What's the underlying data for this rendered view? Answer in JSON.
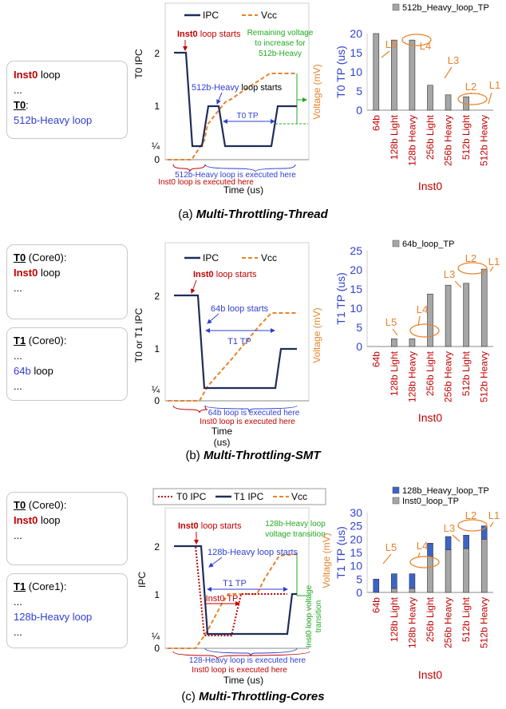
{
  "colors": {
    "ipc": "#1f2d5a",
    "vcc": "#e8832a",
    "red": "#c00000",
    "blue": "#2f3fd0",
    "green": "#22aa22",
    "bar_gray": "#a6a6a6",
    "bar_blue": "#3a64c8"
  },
  "panel_a": {
    "caption_prefix": "(a) ",
    "caption_title": "Multi-Throttling-Thread",
    "code": {
      "l1": "Inst0",
      "l1b": " loop",
      "l2": "...",
      "l3": "T0",
      "l3b": ":",
      "l4": "512b-Heavy loop"
    },
    "timeline": {
      "legend_ipc": "IPC",
      "legend_vcc": "Vcc",
      "ylabel": "T0 IPC",
      "ylabel_right": "Voltage (mV)",
      "xlabel": "Time (us)",
      "yticks": [
        "2",
        "1",
        "¼",
        "0"
      ],
      "ann_start": "Inst0",
      "ann_start_b": " loop starts",
      "ann_512": "512b-Heavy",
      "ann_512b": " loop starts",
      "ann_tp": "T0 TP",
      "green1": "Remaining voltage",
      "green2": "to increase for",
      "green3": "512b-Heavy",
      "below1": "512b-Heavy loop is executed here",
      "below2": "Inst0 loop is executed here"
    },
    "chart_data": {
      "type": "bar",
      "legend": [
        "512b_Heavy_loop_TP"
      ],
      "categories": [
        "64b",
        "128b Light",
        "128b Heavy",
        "256b Light",
        "256b Heavy",
        "512b Light",
        "512b Heavy"
      ],
      "series": [
        {
          "name": "512b_Heavy_loop_TP",
          "values": [
            20,
            18.3,
            18.3,
            6.5,
            4,
            3.5,
            0
          ]
        }
      ],
      "ylabel": "T0 TP (us)",
      "xlabel": "Inst0",
      "ylim": [
        0,
        20
      ],
      "yticks": [
        "0",
        "5",
        "10",
        "15",
        "20"
      ],
      "annotations": [
        "L5",
        "L4",
        "L3",
        "L2",
        "L1"
      ]
    }
  },
  "panel_b": {
    "caption_prefix": "(b) ",
    "caption_title": "Multi-Throttling-SMT",
    "code1": {
      "l1": "T0",
      "l1b": " (Core0):",
      "l2": "Inst0",
      "l2b": " loop",
      "l3": "..."
    },
    "code2": {
      "l1": "T1",
      "l1b": " (Core0):",
      "l2": "...",
      "l3": "64b",
      "l3b": " loop",
      "l4": "..."
    },
    "timeline": {
      "legend_ipc": "IPC",
      "legend_vcc": "Vcc",
      "ylabel": "T0 or T1 IPC",
      "ylabel_right": "Voltage (mV)",
      "xlabel": "Time",
      "xlabel2": "(us)",
      "yticks": [
        "2",
        "1",
        "¼",
        "0"
      ],
      "ann_start": "Inst0",
      "ann_start_b": " loop starts",
      "ann_64": "64b loop starts",
      "ann_tp": "T1 TP",
      "below1": "64b loop is executed here",
      "below2": "Inst0 loop is executed here"
    },
    "chart_data": {
      "type": "bar",
      "legend": [
        "64b_loop_TP"
      ],
      "categories": [
        "64b",
        "128b Light",
        "128b Heavy",
        "256b Light",
        "256b Heavy",
        "512b Light",
        "512b Heavy"
      ],
      "series": [
        {
          "name": "64b_loop_TP",
          "values": [
            0,
            2,
            2,
            13.7,
            16,
            16.5,
            20.2
          ]
        }
      ],
      "ylabel": "T1 TP (us)",
      "xlabel": "Inst0",
      "ylim": [
        0,
        25
      ],
      "yticks": [
        "0",
        "5",
        "10",
        "15",
        "20",
        "25"
      ],
      "annotations": [
        "L5",
        "L4",
        "L3",
        "L2",
        "L1"
      ]
    }
  },
  "panel_c": {
    "caption_prefix": "(c) ",
    "caption_title": "Multi-Throttling-Cores",
    "code1": {
      "l1": "T0",
      "l1b": " (Core0):",
      "l2": "Inst0",
      "l2b": " loop",
      "l3": "..."
    },
    "code2": {
      "l1": "T1",
      "l1b": " (Core1):",
      "l2": "...",
      "l3": "128b-Heavy loop",
      "l4": "..."
    },
    "timeline": {
      "legend_t0": "T0 IPC",
      "legend_t1": "T1 IPC",
      "legend_vcc": "Vcc",
      "ylabel": "IPC",
      "ylabel_right": "Voltage (mV)",
      "xlabel": "Time (us)",
      "yticks": [
        "2",
        "1",
        "¼",
        "0"
      ],
      "ann_start": "Inst0",
      "ann_start_b": " loop starts",
      "ann_128": "128b-Heavy loop starts",
      "ann_t1tp": "T1 TP",
      "ann_inst0tp": "Inst0 TP",
      "green1": "128b-Heavy loop",
      "green2": "voltage transition",
      "green_v1": "Inst0 loop voltage",
      "green_v2": "transition",
      "below1": "128-Heavy loop is executed here",
      "below2": "Inst0 loop is executed here"
    },
    "chart_data": {
      "type": "bar",
      "legend": [
        "128b_Heavy_loop_TP",
        "Inst0_loop_TP"
      ],
      "categories": [
        "64b",
        "128b Light",
        "128b Heavy",
        "256b Light",
        "256b Heavy",
        "512b Light",
        "512b Heavy"
      ],
      "series": [
        {
          "name": "Inst0_loop_TP",
          "values": [
            0,
            1.5,
            1.5,
            13.5,
            16,
            16.5,
            20
          ]
        },
        {
          "name": "128b_Heavy_loop_TP",
          "values": [
            5,
            5.5,
            5.5,
            5,
            5,
            5,
            5
          ]
        }
      ],
      "ylabel": "T1 TP (us)",
      "xlabel": "Inst0",
      "ylim": [
        0,
        30
      ],
      "yticks": [
        "0",
        "5",
        "10",
        "15",
        "20",
        "25",
        "30"
      ],
      "annotations": [
        "L5",
        "L4",
        "L3",
        "L2",
        "L1"
      ]
    }
  }
}
